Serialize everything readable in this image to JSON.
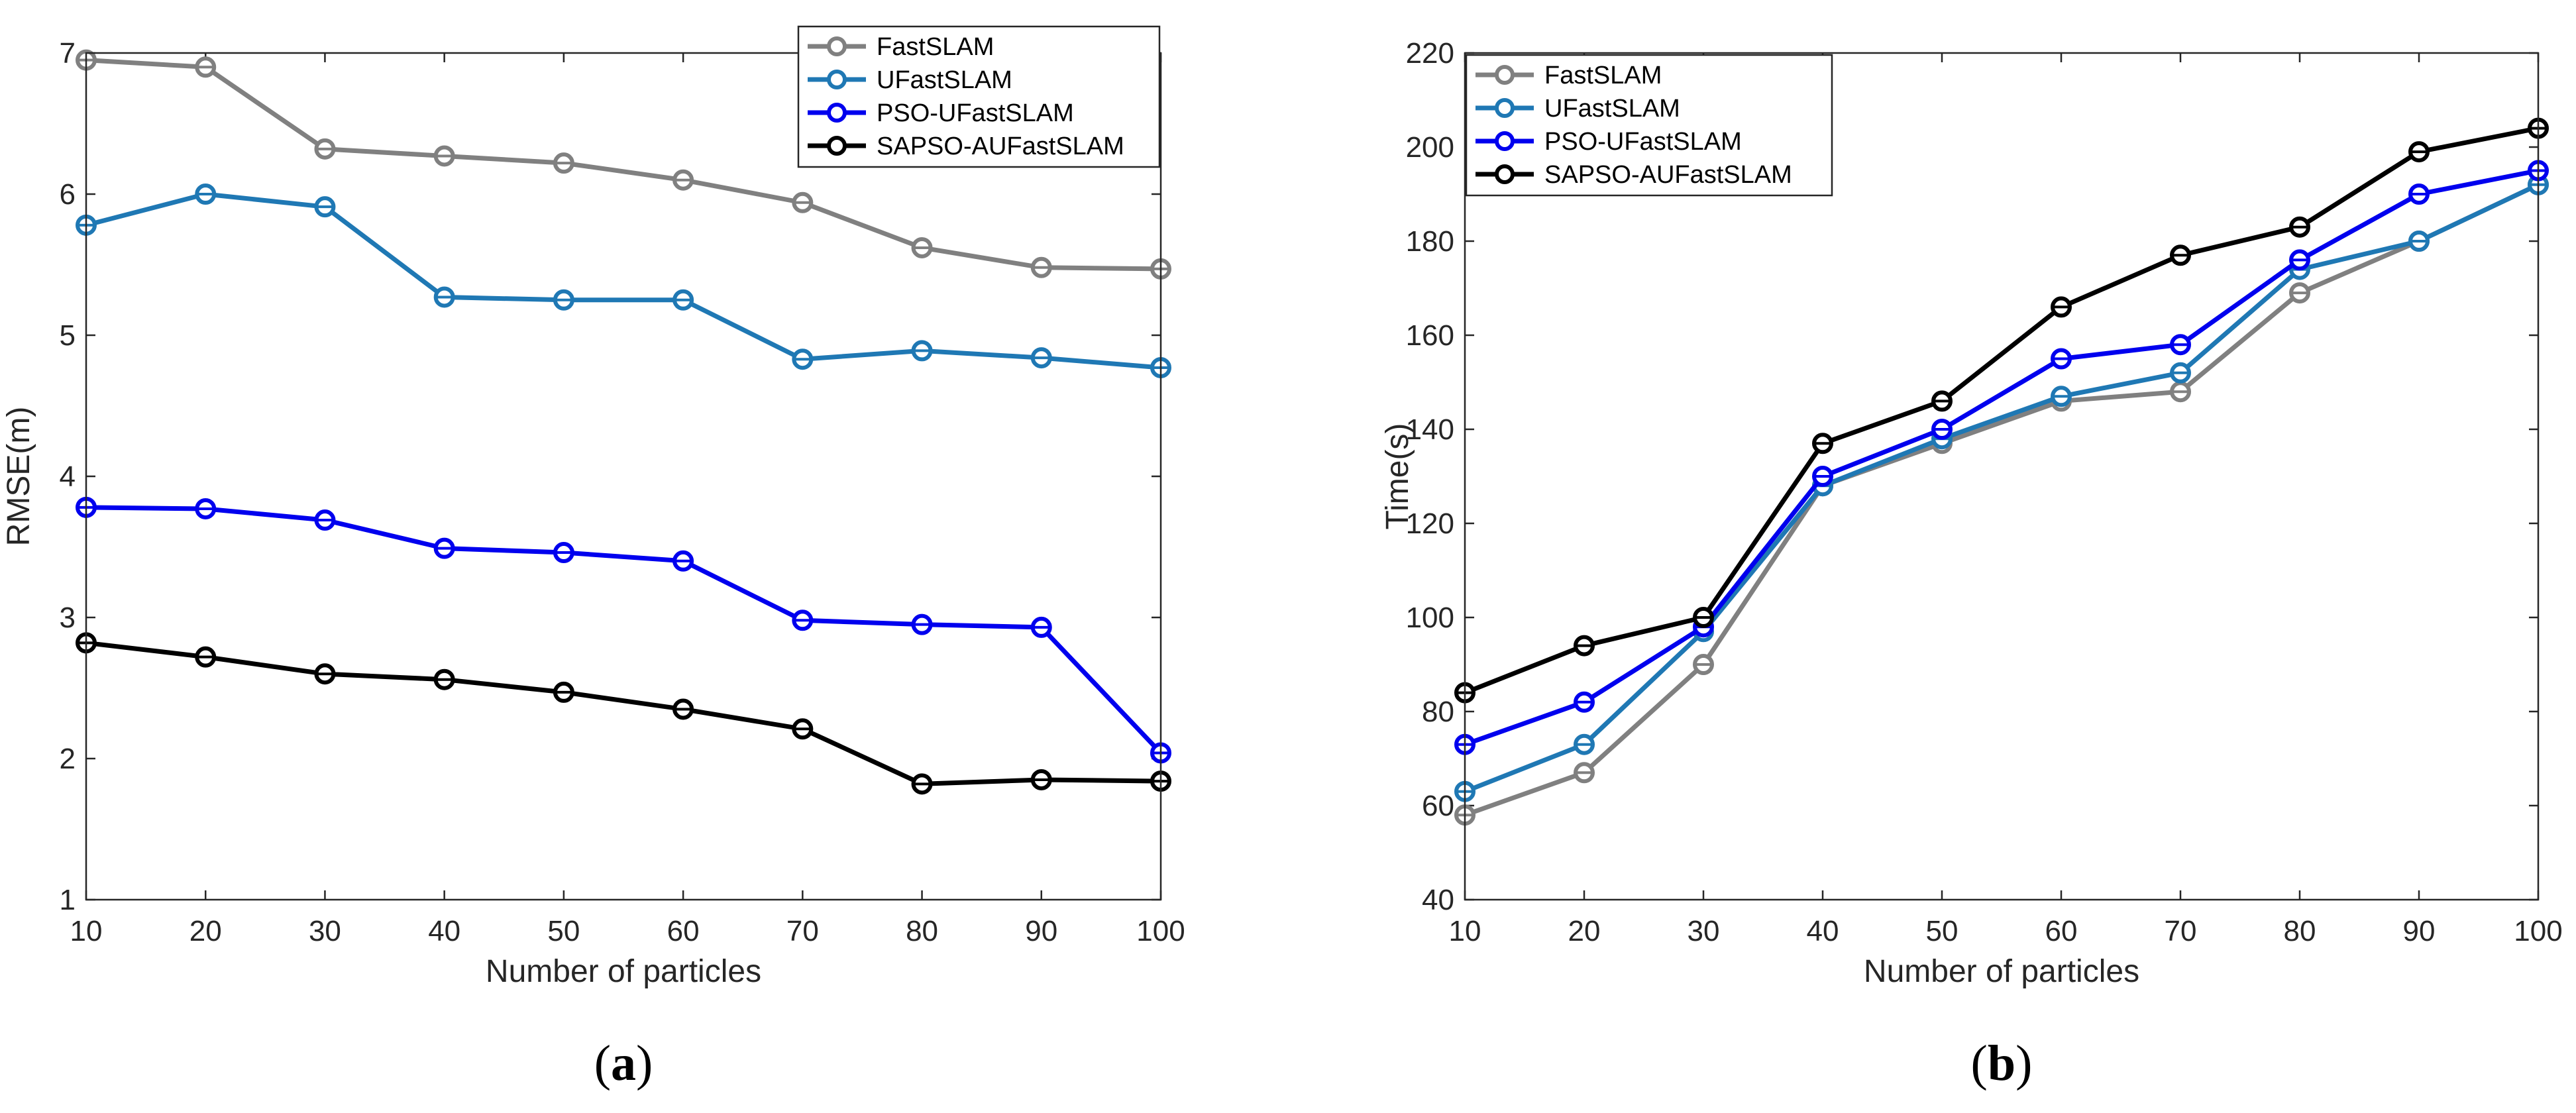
{
  "chart_data": [
    {
      "id": "a",
      "type": "line",
      "caption_letter": "a",
      "xlabel": "Number of particles",
      "ylabel": "RMSE(m)",
      "x": [
        10,
        20,
        30,
        40,
        50,
        60,
        70,
        80,
        90,
        100
      ],
      "xlim": [
        10,
        100
      ],
      "ylim": [
        1,
        7
      ],
      "xticks": [
        10,
        20,
        30,
        40,
        50,
        60,
        70,
        80,
        90,
        100
      ],
      "yticks": [
        1,
        2,
        3,
        4,
        5,
        6,
        7
      ],
      "legend_position": "top-right",
      "series": [
        {
          "name": "FastSLAM",
          "color": "#808080",
          "values": [
            6.95,
            6.9,
            6.32,
            6.27,
            6.22,
            6.1,
            5.94,
            5.62,
            5.48,
            5.47
          ]
        },
        {
          "name": "UFastSLAM",
          "color": "#1f78b4",
          "values": [
            5.78,
            6.0,
            5.91,
            5.27,
            5.25,
            5.25,
            4.83,
            4.89,
            4.84,
            4.77
          ]
        },
        {
          "name": "PSO-UFastSLAM",
          "color": "#0000ee",
          "values": [
            3.78,
            3.77,
            3.69,
            3.49,
            3.46,
            3.4,
            2.98,
            2.95,
            2.93,
            2.04
          ]
        },
        {
          "name": "SAPSO-AUFastSLAM",
          "color": "#000000",
          "values": [
            2.82,
            2.72,
            2.6,
            2.56,
            2.47,
            2.35,
            2.21,
            1.82,
            1.85,
            1.84
          ]
        }
      ]
    },
    {
      "id": "b",
      "type": "line",
      "caption_letter": "b",
      "xlabel": "Number of particles",
      "ylabel": "Time(s)",
      "x": [
        10,
        20,
        30,
        40,
        50,
        60,
        70,
        80,
        90,
        100
      ],
      "xlim": [
        10,
        100
      ],
      "ylim": [
        40,
        220
      ],
      "xticks": [
        10,
        20,
        30,
        40,
        50,
        60,
        70,
        80,
        90,
        100
      ],
      "yticks": [
        40,
        60,
        80,
        100,
        120,
        140,
        160,
        180,
        200,
        220
      ],
      "legend_position": "top-left",
      "series": [
        {
          "name": "FastSLAM",
          "color": "#808080",
          "values": [
            58,
            67,
            90,
            128,
            137,
            146,
            148,
            169,
            180,
            192
          ]
        },
        {
          "name": "UFastSLAM",
          "color": "#1f78b4",
          "values": [
            63,
            73,
            97,
            128,
            138,
            147,
            152,
            174,
            180,
            192
          ]
        },
        {
          "name": "PSO-UFastSLAM",
          "color": "#0000ee",
          "values": [
            73,
            82,
            98,
            130,
            140,
            155,
            158,
            176,
            190,
            195
          ]
        },
        {
          "name": "SAPSO-AUFastSLAM",
          "color": "#000000",
          "values": [
            84,
            94,
            100,
            137,
            146,
            166,
            177,
            183,
            199,
            204
          ]
        }
      ]
    }
  ]
}
